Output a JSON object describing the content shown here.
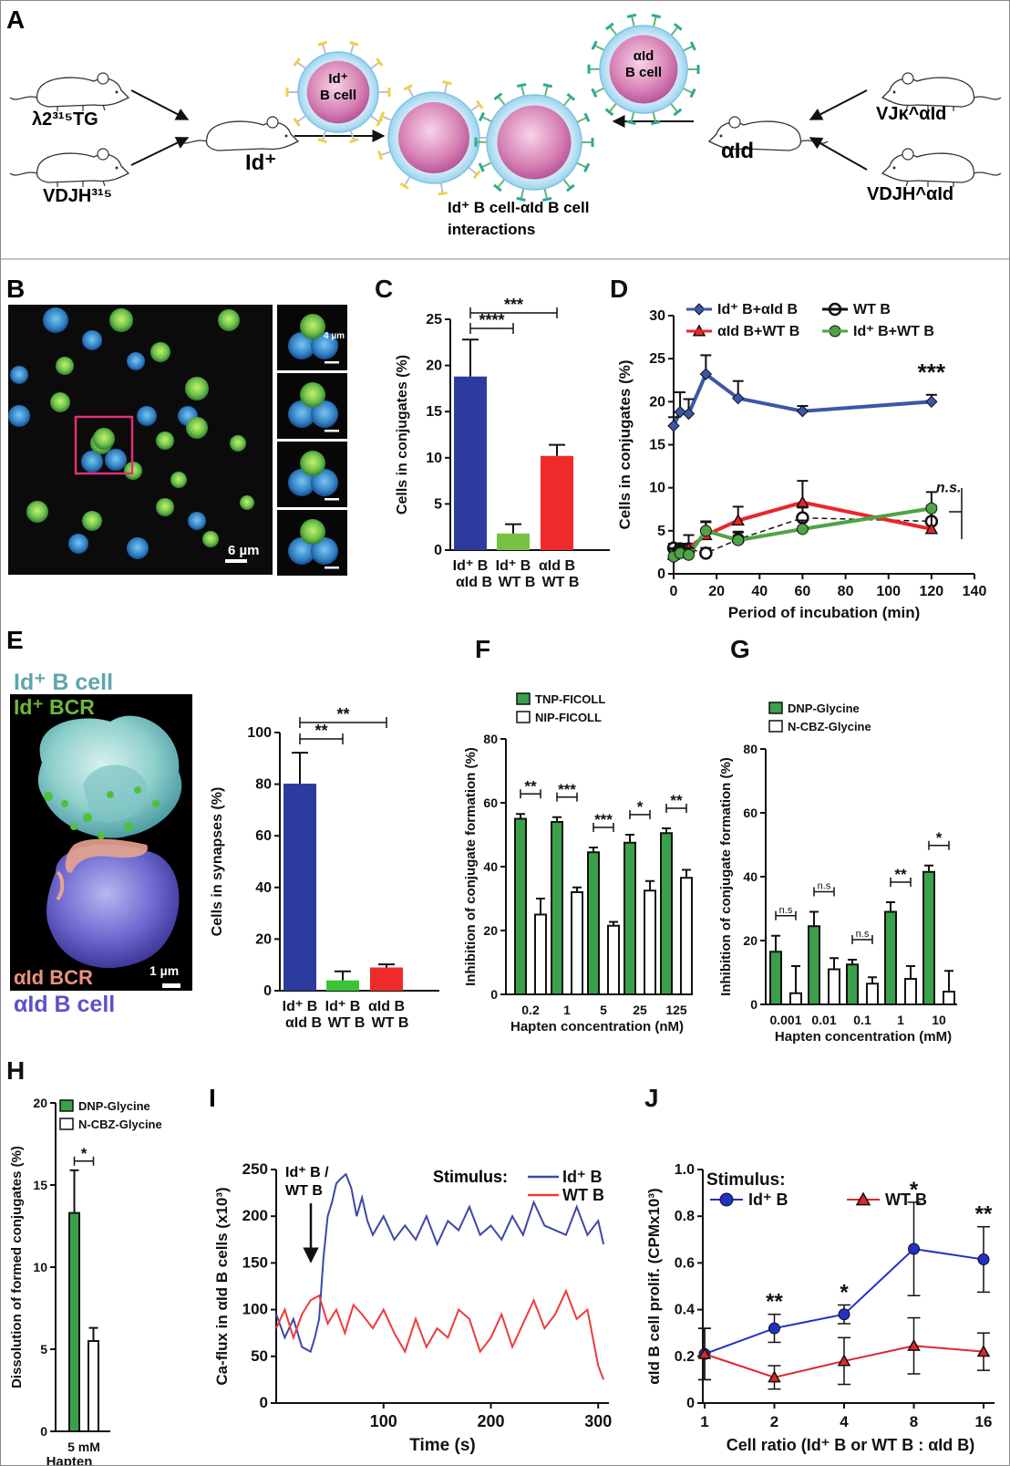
{
  "panels": {
    "A": {
      "letter": "A",
      "mice": {
        "lambda_tg": "λ2³¹⁵TG",
        "vdjh": "VDJH³¹⁵",
        "id_plus": "Id⁺",
        "aid": "αId",
        "vjk": "VJκ^αId",
        "vdjh_aid": "VDJH^αId"
      },
      "cell_idp": [
        "Id⁺",
        "B cell"
      ],
      "cell_aid": [
        "αId",
        "B cell"
      ],
      "caption": [
        "Id⁺ B cell-αId B cell",
        "interactions"
      ]
    },
    "B": {
      "letter": "B",
      "scale_main": "6 µm",
      "scale_inset": "4 µm"
    },
    "E": {
      "letter": "E",
      "labels": {
        "id_cell": "Id⁺ B cell",
        "id_bcr": "Id⁺ BCR",
        "aid_bcr": "αId BCR",
        "aid_cell": "αId B cell",
        "scale": "1 µm"
      }
    },
    "I": {
      "letter": "I",
      "arrow_label": [
        "Id⁺ B /",
        "WT B"
      ],
      "stim_title": "Stimulus:"
    }
  },
  "chart_data": [
    {
      "id": "C",
      "letter": "C",
      "type": "bar",
      "categories": [
        [
          "Id⁺ B",
          "αId B"
        ],
        [
          "Id⁺ B",
          "WT B"
        ],
        [
          "αId B",
          "WT B"
        ]
      ],
      "values": [
        18.8,
        1.8,
        10.2
      ],
      "errors": [
        4.0,
        1.0,
        1.2
      ],
      "colors": [
        "#2e3b9e",
        "#79c142",
        "#ef2a2a"
      ],
      "ylabel": "Cells in conjugates (%)",
      "ylim": [
        0,
        25
      ],
      "yticks": [
        "0",
        "5",
        "10",
        "15",
        "20",
        "25"
      ],
      "significance": [
        {
          "from": 0,
          "to": 1,
          "text": "****"
        },
        {
          "from": 0,
          "to": 2,
          "text": "***"
        }
      ]
    },
    {
      "id": "D",
      "letter": "D",
      "type": "line",
      "xlabel": "Period of incubation (min)",
      "ylabel": "Cells in conjugates (%)",
      "xlim": [
        0,
        140
      ],
      "ylim": [
        0,
        30
      ],
      "xticks": [
        "0",
        "20",
        "40",
        "60",
        "80",
        "100",
        "120",
        "140"
      ],
      "yticks": [
        "0",
        "5",
        "10",
        "15",
        "20",
        "25",
        "30"
      ],
      "series": [
        {
          "name": "Id⁺ B+αId B",
          "color": "#3d56a8",
          "marker": "diamond",
          "x": [
            0,
            3,
            7,
            15,
            30,
            60,
            120
          ],
          "y": [
            17.2,
            18.8,
            18.6,
            23.2,
            20.4,
            18.9,
            20.0
          ],
          "err": [
            1.0,
            2.3,
            1.7,
            2.2,
            2.0,
            0.6,
            0.8
          ]
        },
        {
          "name": "WT B",
          "color": "#111111",
          "marker": "circle-open",
          "dashed": true,
          "x": [
            0,
            3,
            7,
            15,
            30,
            60,
            120
          ],
          "y": [
            3.0,
            2.9,
            2.9,
            2.4,
            4.0,
            6.5,
            6.1
          ],
          "err": [
            0.5,
            0.6,
            0.6,
            0.6,
            0.8,
            1.2,
            1.8
          ]
        },
        {
          "name": "αId B+WT B",
          "color": "#e8262b",
          "marker": "triangle",
          "x": [
            0,
            3,
            7,
            15,
            30,
            60,
            120
          ],
          "y": [
            2.2,
            2.6,
            3.0,
            4.5,
            6.2,
            8.3,
            5.2
          ],
          "err": [
            0.8,
            0.7,
            1.5,
            1.5,
            1.6,
            2.5,
            2.3
          ]
        },
        {
          "name": "Id⁺ B+WT B",
          "color": "#4ea344",
          "marker": "circle",
          "x": [
            0,
            3,
            7,
            15,
            30,
            60,
            120
          ],
          "y": [
            2.0,
            2.4,
            2.2,
            5.0,
            3.9,
            5.2,
            7.6
          ],
          "err": [
            0.8,
            0.8,
            0.8,
            1.1,
            1.0,
            1.0,
            1.9
          ]
        }
      ],
      "annotations": [
        {
          "text": "***",
          "x": 120,
          "y": 22.5
        },
        {
          "text": "n.s.",
          "x": 128,
          "y": 9.5
        }
      ]
    },
    {
      "id": "E2",
      "type": "bar",
      "categories": [
        [
          "Id⁺ B",
          "αId B"
        ],
        [
          "Id⁺ B",
          "WT B"
        ],
        [
          "αId B",
          "WT B"
        ]
      ],
      "values": [
        80.2,
        4.0,
        9.0
      ],
      "errors": [
        12.0,
        3.5,
        1.2
      ],
      "colors": [
        "#2e3b9e",
        "#39c436",
        "#ef2a2a"
      ],
      "ylabel": "Cells in synapses (%)",
      "ylim": [
        0,
        100
      ],
      "yticks": [
        "0",
        "20",
        "40",
        "60",
        "80",
        "100"
      ],
      "significance": [
        {
          "from": 0,
          "to": 1,
          "text": "**"
        },
        {
          "from": 0,
          "to": 2,
          "text": "**"
        }
      ]
    },
    {
      "id": "F",
      "letter": "F",
      "type": "bar",
      "categories": [
        "0.2",
        "1",
        "5",
        "25",
        "125"
      ],
      "xlabel": "Hapten concentration (nM)",
      "ylabel": "Inhibition of conjugate formation (%)",
      "ylim": [
        0,
        80
      ],
      "yticks": [
        "0",
        "20",
        "40",
        "60",
        "80"
      ],
      "series": [
        {
          "name": "TNP-FICOLL",
          "color": "#3aa04a",
          "values": [
            55,
            54,
            44.5,
            47.5,
            50.5
          ],
          "errors": [
            1.5,
            1.5,
            1.5,
            2.5,
            1.5
          ]
        },
        {
          "name": "NIP-FICOLL",
          "color": "#ffffff",
          "values": [
            25,
            32,
            21.5,
            32.5,
            36.5
          ],
          "errors": [
            5,
            1.5,
            1.2,
            3,
            2.5
          ]
        }
      ],
      "significance": [
        "**",
        "***",
        "***",
        "*",
        "**"
      ]
    },
    {
      "id": "G",
      "letter": "G",
      "type": "bar",
      "categories": [
        "0.001",
        "0.01",
        "0.1",
        "1",
        "10"
      ],
      "xlabel": "Hapten concentration (mM)",
      "ylabel": "Inhibition of conjugate formation (%)",
      "ylim": [
        0,
        80
      ],
      "yticks": [
        "0",
        "20",
        "40",
        "60",
        "80"
      ],
      "series": [
        {
          "name": "DNP-Glycine",
          "color": "#3aa04a",
          "values": [
            16.5,
            24.5,
            12.5,
            29,
            41.5
          ],
          "errors": [
            5,
            4.5,
            1.5,
            3,
            2
          ]
        },
        {
          "name": "N-CBZ-Glycine",
          "color": "#ffffff",
          "values": [
            3.5,
            11,
            6.5,
            8,
            4
          ],
          "errors": [
            8.5,
            3.5,
            2,
            4,
            6.5
          ]
        }
      ],
      "significance": [
        "n.s",
        "n.s",
        "n.s",
        "**",
        "*"
      ]
    },
    {
      "id": "H",
      "letter": "H",
      "type": "bar",
      "categories": [
        "5 mM"
      ],
      "xlabel": "Hapten",
      "ylabel": "Dissolution of formed conjugates (%)",
      "ylim": [
        0,
        20
      ],
      "yticks": [
        "0",
        "5",
        "10",
        "15",
        "20"
      ],
      "series": [
        {
          "name": "DNP-Glycine",
          "color": "#3aa04a",
          "values": [
            13.3
          ],
          "errors": [
            2.6
          ]
        },
        {
          "name": "N-CBZ-Glycine",
          "color": "#ffffff",
          "values": [
            5.5
          ],
          "errors": [
            0.8
          ]
        }
      ],
      "significance": [
        "*"
      ]
    },
    {
      "id": "I",
      "type": "line",
      "xlabel": "Time (s)",
      "ylabel": "Ca-flux in αId B cells (x10³)",
      "xlim": [
        0,
        310
      ],
      "ylim": [
        0,
        250
      ],
      "xticks": [
        "100",
        "200",
        "300"
      ],
      "yticks": [
        "0",
        "50",
        "100",
        "150",
        "200",
        "250"
      ],
      "series": [
        {
          "name": "Id⁺ B",
          "color": "#3c48a6",
          "x": [
            0,
            8,
            16,
            24,
            32,
            36,
            40,
            44,
            48,
            52,
            56,
            60,
            65,
            70,
            75,
            80,
            85,
            90,
            100,
            110,
            120,
            130,
            140,
            150,
            160,
            170,
            180,
            190,
            200,
            210,
            220,
            230,
            240,
            250,
            260,
            270,
            280,
            290,
            300,
            305
          ],
          "y": [
            95,
            70,
            90,
            60,
            55,
            70,
            90,
            155,
            200,
            215,
            235,
            240,
            245,
            230,
            200,
            220,
            195,
            180,
            200,
            175,
            190,
            175,
            200,
            170,
            195,
            185,
            210,
            180,
            190,
            175,
            200,
            180,
            215,
            190,
            185,
            180,
            210,
            180,
            195,
            170
          ]
        },
        {
          "name": "WT B",
          "color": "#ef3b3b",
          "x": [
            0,
            8,
            16,
            24,
            32,
            40,
            48,
            56,
            64,
            72,
            80,
            90,
            100,
            110,
            120,
            130,
            140,
            150,
            160,
            170,
            180,
            190,
            200,
            210,
            220,
            230,
            240,
            250,
            260,
            270,
            280,
            290,
            300,
            305
          ],
          "y": [
            80,
            100,
            70,
            95,
            110,
            115,
            85,
            100,
            75,
            105,
            95,
            80,
            100,
            75,
            55,
            90,
            60,
            80,
            70,
            100,
            90,
            55,
            70,
            95,
            60,
            85,
            110,
            80,
            95,
            120,
            90,
            100,
            40,
            25
          ]
        }
      ]
    },
    {
      "id": "J",
      "letter": "J",
      "type": "line",
      "xlabel": "Cell ratio (Id⁺ B  or WT B : αId B)",
      "ylabel": "αId B cell prolif. (CPMx10³)",
      "categories": [
        "1",
        "2",
        "4",
        "8",
        "16"
      ],
      "ylim": [
        0,
        1.0
      ],
      "yticks": [
        "0",
        "0.2",
        "0.4",
        "0.6",
        "0.8",
        "1.0"
      ],
      "legend_title": "Stimulus:",
      "series": [
        {
          "name": "Id⁺ B",
          "color": "#2330c4",
          "marker": "circle",
          "values": [
            0.21,
            0.32,
            0.38,
            0.66,
            0.615
          ],
          "err": [
            0.11,
            0.06,
            0.04,
            0.2,
            0.14
          ]
        },
        {
          "name": "WT B",
          "color": "#e0262b",
          "marker": "triangle",
          "values": [
            0.21,
            0.11,
            0.18,
            0.245,
            0.22
          ],
          "err": [
            0.11,
            0.05,
            0.1,
            0.12,
            0.08
          ]
        }
      ],
      "significance": [
        "",
        "**",
        "*",
        "*",
        "**"
      ]
    }
  ]
}
